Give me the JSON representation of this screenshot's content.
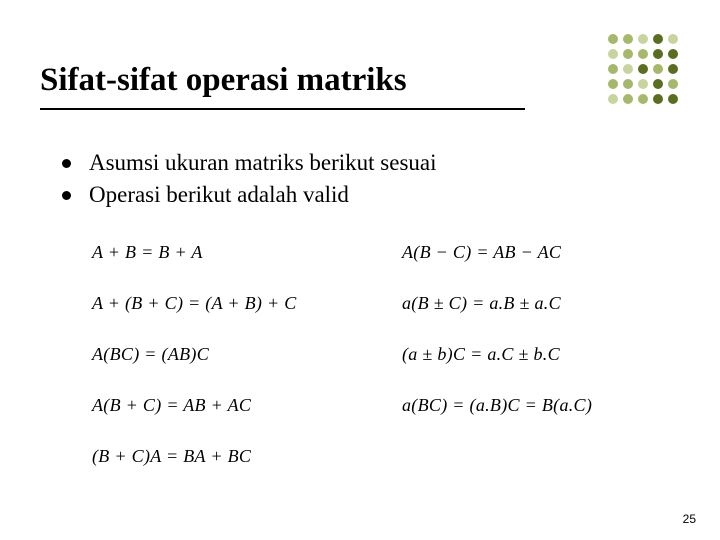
{
  "title": "Sifat-sifat operasi matriks",
  "bullets": [
    "Asumsi ukuran matriks berikut sesuai",
    "Operasi berikut adalah valid"
  ],
  "equations": {
    "colA": [
      "A + B = B + A",
      "A + (B + C) = (A + B) + C",
      "A(BC) = (AB)C",
      "A(B + C) = AB + AC",
      "(B + C)A = BA + BC"
    ],
    "colB": [
      "A(B − C) = AB − AC",
      "a(B ± C) = a.B ± a.C",
      "(a ± b)C = a.C ± b.C",
      "a(BC) = (a.B)C = B(a.C)"
    ]
  },
  "page_number": "25",
  "decor": {
    "colors": {
      "mid": "#a6b96a",
      "light": "#c7d49e",
      "dark": "#5a6e1f"
    },
    "pattern": [
      [
        "mid",
        "mid",
        "light",
        "dark",
        "light"
      ],
      [
        "light",
        "mid",
        "mid",
        "dark",
        "dark"
      ],
      [
        "mid",
        "light",
        "dark",
        "mid",
        "dark"
      ],
      [
        "mid",
        "mid",
        "light",
        "dark",
        "mid"
      ],
      [
        "light",
        "mid",
        "mid",
        "dark",
        "dark"
      ]
    ]
  },
  "text_color": "#000000",
  "bg_color": "#ffffff"
}
